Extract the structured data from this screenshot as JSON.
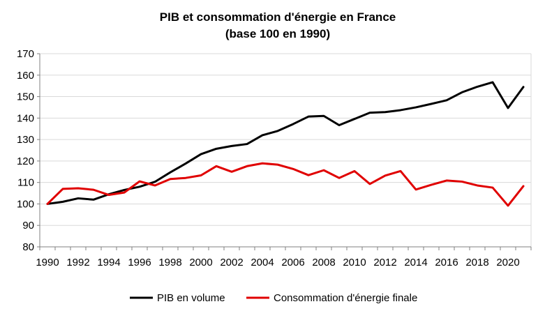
{
  "chart_data": {
    "type": "line",
    "title": "PIB et consommation d'énergie en France",
    "subtitle": "(base 100 en 1990)",
    "xlabel": "",
    "ylabel": "",
    "ylim": [
      80,
      170
    ],
    "xlim": [
      1990,
      2021
    ],
    "yticks": [
      "80",
      "90",
      "100",
      "110",
      "120",
      "130",
      "140",
      "150",
      "160",
      "170"
    ],
    "xticks": [
      "1990",
      "1992",
      "1994",
      "1996",
      "1998",
      "2000",
      "2002",
      "2004",
      "2006",
      "2008",
      "2010",
      "2012",
      "2014",
      "2016",
      "2018",
      "2020"
    ],
    "grid": true,
    "legend_position": "bottom",
    "x": [
      1990,
      1991,
      1992,
      1993,
      1994,
      1995,
      1996,
      1997,
      1998,
      1999,
      2000,
      2001,
      2002,
      2003,
      2004,
      2005,
      2006,
      2007,
      2008,
      2009,
      2010,
      2011,
      2012,
      2013,
      2014,
      2015,
      2016,
      2017,
      2018,
      2019,
      2020,
      2021
    ],
    "series": [
      {
        "name": "PIB en volume",
        "color": "#000000",
        "values": [
          100,
          101,
          102.6,
          102,
          104.5,
          106.5,
          108,
          110.3,
          114.7,
          118.8,
          123.2,
          125.7,
          127,
          127.9,
          132,
          134,
          137.2,
          140.7,
          141,
          136.7,
          139.6,
          142.5,
          142.8,
          143.7,
          145,
          146.6,
          148.3,
          152,
          154.6,
          156.7,
          144.7,
          154.5
        ]
      },
      {
        "name": "Consommation d'énergie finale",
        "color": "#e00000",
        "values": [
          100,
          107,
          107.3,
          106.6,
          104.2,
          105.3,
          110.5,
          108.6,
          111.6,
          112.1,
          113.3,
          117.6,
          115,
          117.6,
          118.9,
          118.3,
          116.3,
          113.4,
          115.7,
          112.1,
          115.3,
          109.3,
          113.2,
          115.3,
          106.7,
          108.9,
          110.9,
          110.4,
          108.6,
          107.6,
          99.2,
          108.3
        ]
      }
    ]
  }
}
